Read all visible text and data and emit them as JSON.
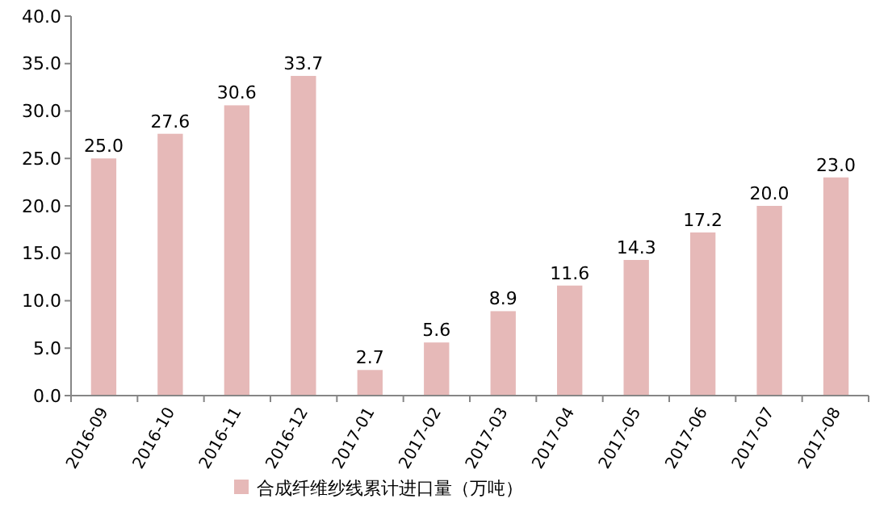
{
  "chart_data": {
    "type": "bar",
    "categories": [
      "2016-09",
      "2016-10",
      "2016-11",
      "2016-12",
      "2017-01",
      "2017-02",
      "2017-03",
      "2017-04",
      "2017-05",
      "2017-06",
      "2017-07",
      "2017-08"
    ],
    "series": [
      {
        "name": "合成纤维纱线累计进口量（万吨）",
        "color": "#e6b9b8",
        "values": [
          25.0,
          27.6,
          30.6,
          33.7,
          2.7,
          5.6,
          8.9,
          11.6,
          14.3,
          17.2,
          20.0,
          23.0
        ],
        "value_labels": [
          "25.0",
          "27.6",
          "30.6",
          "33.7",
          "2.7",
          "5.6",
          "8.9",
          "11.6",
          "14.3",
          "17.2",
          "20.0",
          "23.0"
        ]
      }
    ],
    "ylim": [
      0,
      40
    ],
    "yticks": [
      {
        "value": 0,
        "label": "0.0"
      },
      {
        "value": 5,
        "label": "5.0"
      },
      {
        "value": 10,
        "label": "10.0"
      },
      {
        "value": 15,
        "label": "15.0"
      },
      {
        "value": 20,
        "label": "20.0"
      },
      {
        "value": 25,
        "label": "25.0"
      },
      {
        "value": 30,
        "label": "30.0"
      },
      {
        "value": 35,
        "label": "35.0"
      },
      {
        "value": 40,
        "label": "40.0"
      }
    ],
    "legend": "bottom"
  }
}
